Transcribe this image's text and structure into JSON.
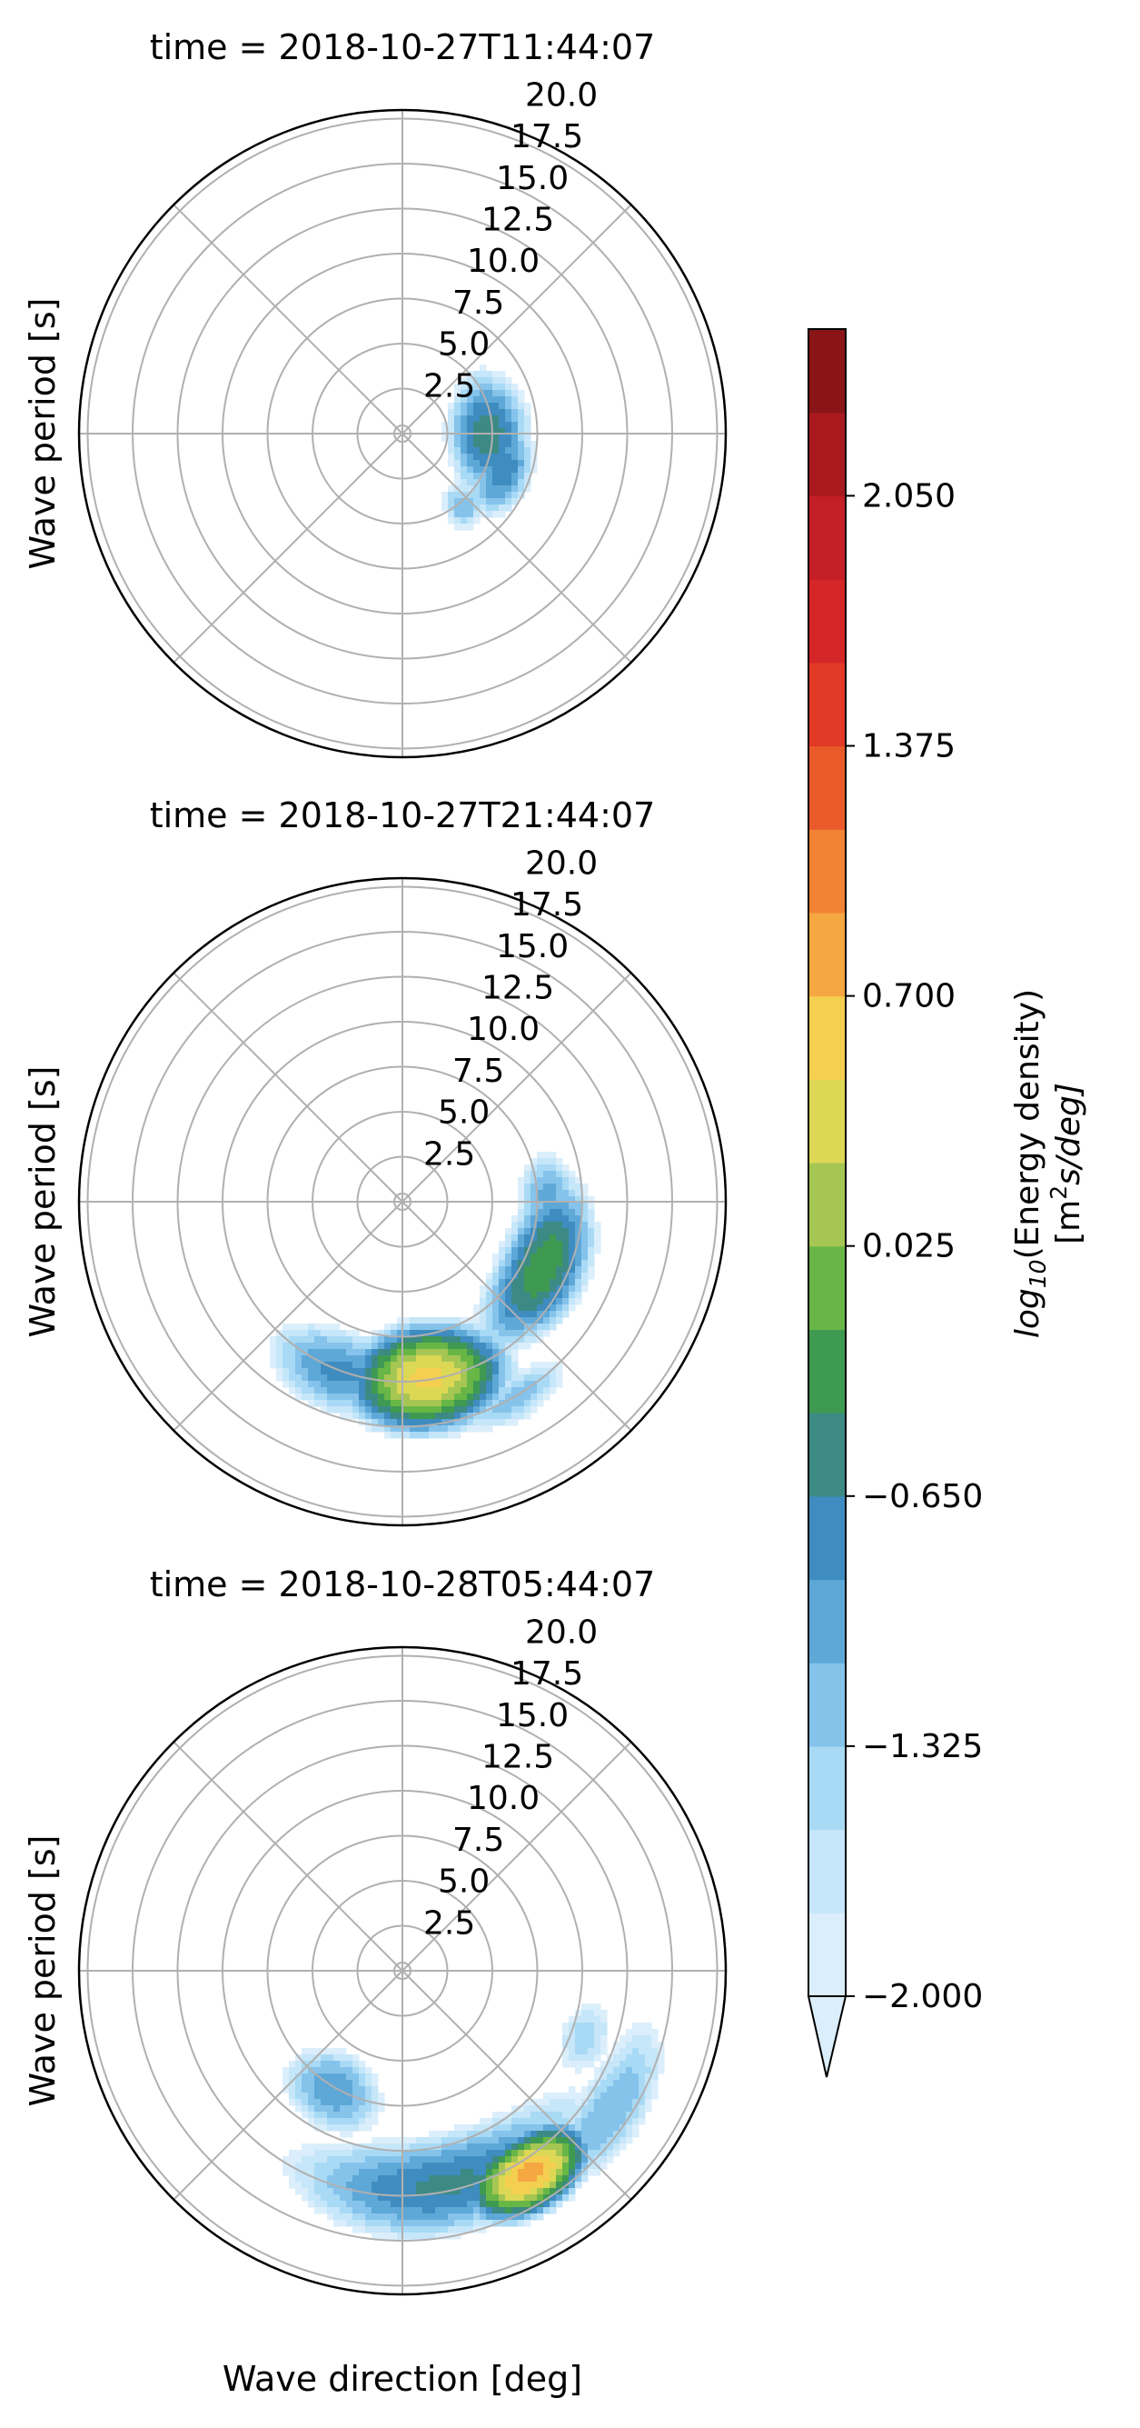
{
  "figure": {
    "xlabel": "Wave direction [deg]"
  },
  "colorbar": {
    "label_prefix": "log",
    "label_sub": "10",
    "label_main": "(Energy density)",
    "unit_prefix": "[m",
    "unit_sup": "2",
    "unit_main": "s/deg]",
    "ticks": [
      "2.050",
      "1.375",
      "0.700",
      "0.025",
      "−0.650",
      "−1.325",
      "−2.000"
    ],
    "min": -2.0,
    "max": 2.5,
    "extend": "min",
    "levels": [
      {
        "from": -2.0,
        "color": "#dbeefb"
      },
      {
        "from": -1.775,
        "color": "#c6e6f9"
      },
      {
        "from": -1.55,
        "color": "#a9daf5"
      },
      {
        "from": -1.325,
        "color": "#85c3eb"
      },
      {
        "from": -1.1,
        "color": "#5ea8d8"
      },
      {
        "from": -0.875,
        "color": "#3f8cc0"
      },
      {
        "from": -0.65,
        "color": "#3d8a84"
      },
      {
        "from": -0.425,
        "color": "#3f9a51"
      },
      {
        "from": -0.2,
        "color": "#68b646"
      },
      {
        "from": 0.025,
        "color": "#a6c653"
      },
      {
        "from": 0.25,
        "color": "#dcd855"
      },
      {
        "from": 0.475,
        "color": "#f5cf50"
      },
      {
        "from": 0.7,
        "color": "#f5a742"
      },
      {
        "from": 0.925,
        "color": "#f28234"
      },
      {
        "from": 1.15,
        "color": "#ea5a2b"
      },
      {
        "from": 1.375,
        "color": "#e03a26"
      },
      {
        "from": 1.6,
        "color": "#d42627"
      },
      {
        "from": 1.825,
        "color": "#c41e26"
      },
      {
        "from": 2.05,
        "color": "#a81a1e"
      },
      {
        "from": 2.275,
        "color": "#8a1517"
      }
    ]
  },
  "chart_data": [
    {
      "type": "polar-contour",
      "title": "time = 2018-10-27T11:44:07",
      "ylabel": "Wave period [s]",
      "radial_ticks": [
        "2.5",
        "5.0",
        "7.5",
        "10.0",
        "12.5",
        "15.0",
        "17.5",
        "20.0"
      ],
      "rlim": [
        0,
        20
      ],
      "angular_grid_deg": [
        0,
        45,
        90,
        135,
        180,
        225,
        270,
        315
      ],
      "blobs": [
        {
          "dir_deg": 90,
          "period_s": 5.3,
          "dir_spread_deg": 38,
          "period_spread_s": 2.4,
          "peak": -0.5
        },
        {
          "dir_deg": 110,
          "period_s": 6.6,
          "dir_spread_deg": 26,
          "period_spread_s": 1.8,
          "peak": -0.7
        },
        {
          "dir_deg": 140,
          "period_s": 5.8,
          "dir_spread_deg": 14,
          "period_spread_s": 1.6,
          "peak": -1.1
        }
      ]
    },
    {
      "type": "polar-contour",
      "title": "time = 2018-10-27T21:44:07",
      "ylabel": "Wave period [s]",
      "radial_ticks": [
        "2.5",
        "5.0",
        "7.5",
        "10.0",
        "12.5",
        "15.0",
        "17.5",
        "20.0"
      ],
      "rlim": [
        0,
        20
      ],
      "angular_grid_deg": [
        0,
        45,
        90,
        135,
        180,
        225,
        270,
        315
      ],
      "blobs": [
        {
          "dir_deg": 172,
          "period_s": 11.0,
          "dir_spread_deg": 20,
          "period_spread_s": 2.6,
          "peak": 0.55
        },
        {
          "dir_deg": 115,
          "period_s": 9.6,
          "dir_spread_deg": 30,
          "period_spread_s": 2.4,
          "peak": -0.25
        },
        {
          "dir_deg": 200,
          "period_s": 11.2,
          "dir_spread_deg": 24,
          "period_spread_s": 2.6,
          "peak": -0.8
        },
        {
          "dir_deg": 150,
          "period_s": 14.0,
          "dir_spread_deg": 18,
          "period_spread_s": 1.6,
          "peak": -1.2
        },
        {
          "dir_deg": 88,
          "period_s": 9.0,
          "dir_spread_deg": 18,
          "period_spread_s": 2.0,
          "peak": -1.0
        }
      ]
    },
    {
      "type": "polar-contour",
      "title": "time = 2018-10-28T05:44:07",
      "ylabel": "Wave period [s]",
      "radial_ticks": [
        "2.5",
        "5.0",
        "7.5",
        "10.0",
        "12.5",
        "15.0",
        "17.5",
        "20.0"
      ],
      "rlim": [
        0,
        20
      ],
      "angular_grid_deg": [
        0,
        45,
        90,
        135,
        180,
        225,
        270,
        315
      ],
      "blobs": [
        {
          "dir_deg": 148,
          "period_s": 14.8,
          "dir_spread_deg": 12,
          "period_spread_s": 1.8,
          "peak": 0.8
        },
        {
          "dir_deg": 168,
          "period_s": 13.5,
          "dir_spread_deg": 40,
          "period_spread_s": 3.0,
          "peak": -0.6
        },
        {
          "dir_deg": 210,
          "period_s": 8.5,
          "dir_spread_deg": 22,
          "period_spread_s": 2.6,
          "peak": -0.9
        },
        {
          "dir_deg": 125,
          "period_s": 15.5,
          "dir_spread_deg": 26,
          "period_spread_s": 2.4,
          "peak": -1.1
        },
        {
          "dir_deg": 110,
          "period_s": 12.0,
          "dir_spread_deg": 14,
          "period_spread_s": 2.0,
          "peak": -1.4
        }
      ]
    }
  ]
}
